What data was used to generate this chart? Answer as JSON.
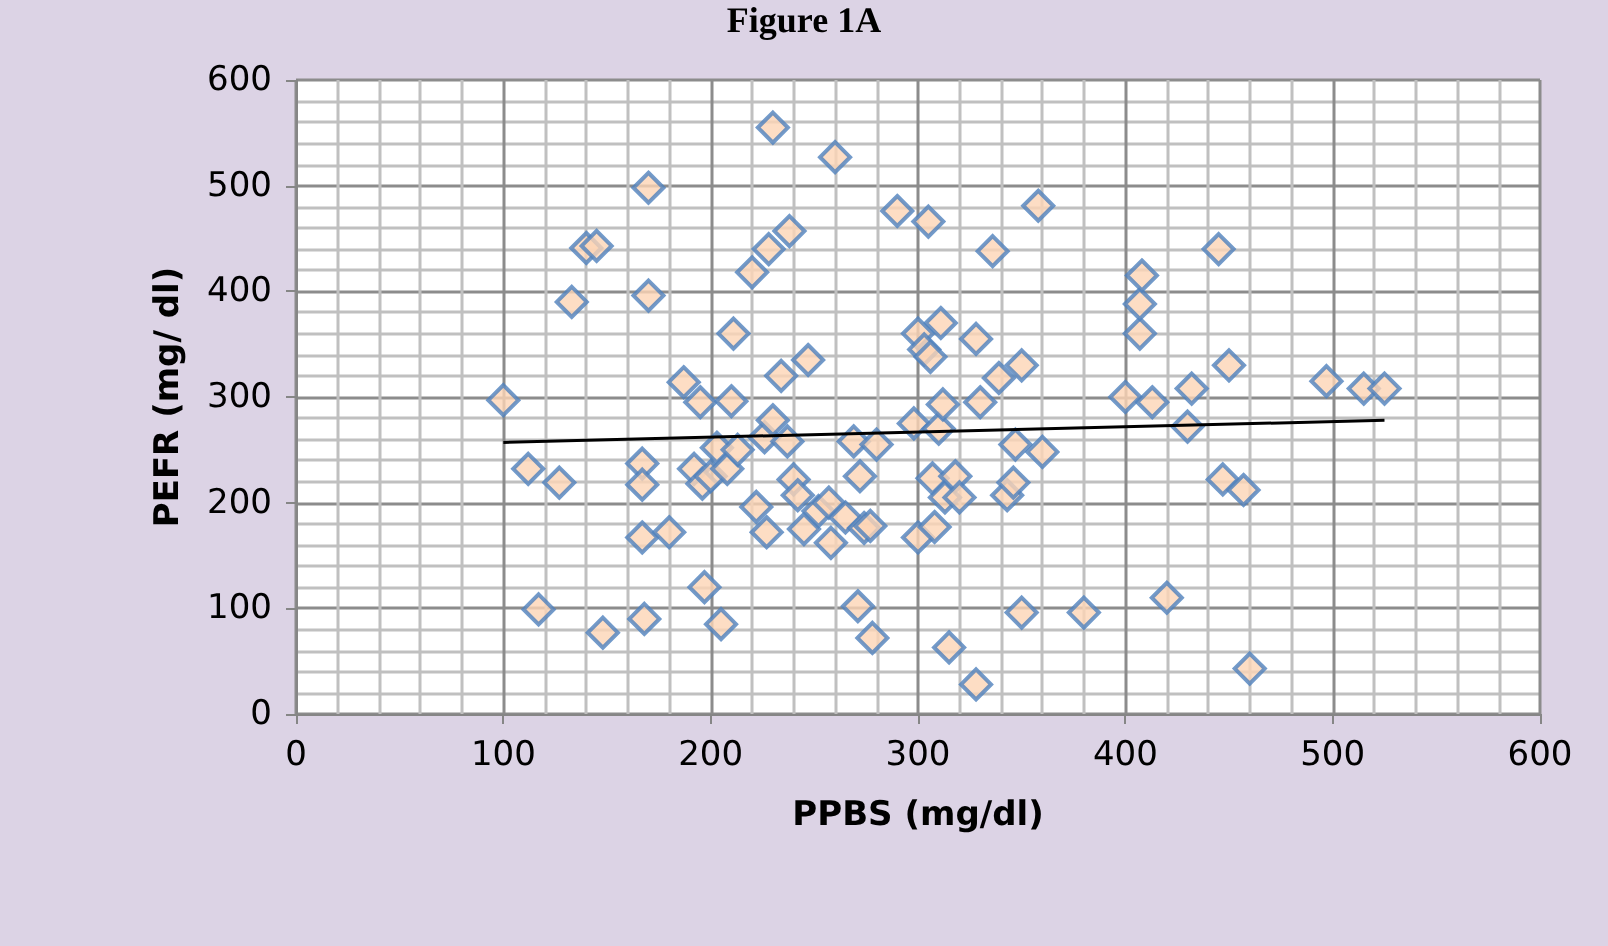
{
  "chart_data": {
    "type": "scatter",
    "title": "Figure 1A",
    "xlabel": "PPBS (mg/dl)",
    "ylabel": "PEFR (mg/ dl)",
    "xlim": [
      0,
      600
    ],
    "ylim": [
      0,
      600
    ],
    "xticks": [
      0,
      100,
      200,
      300,
      400,
      500,
      600
    ],
    "yticks": [
      0,
      100,
      200,
      300,
      400,
      500,
      600
    ],
    "grid": true,
    "marker": "diamond",
    "series": [
      {
        "color": "#4f81bd",
        "x": [
          100,
          112,
          117,
          127,
          133,
          140,
          145,
          148,
          167,
          167,
          167,
          168,
          170,
          170,
          180,
          187,
          192,
          195,
          196,
          197,
          200,
          203,
          205,
          208,
          210,
          211,
          213,
          220,
          222,
          226,
          227,
          228,
          230,
          230,
          234,
          237,
          238,
          240,
          242,
          245,
          247,
          252,
          257,
          258,
          260,
          265,
          269,
          271,
          272,
          274,
          277,
          278,
          280,
          290,
          298,
          300,
          300,
          303,
          305,
          306,
          307,
          308,
          310,
          311,
          312,
          313,
          315,
          318,
          320,
          328,
          328,
          330,
          336,
          339,
          343,
          346,
          347,
          350,
          350,
          358,
          360,
          380,
          400,
          407,
          407,
          408,
          413,
          420,
          430,
          432,
          445,
          447,
          450,
          457,
          460,
          497,
          515,
          525
        ],
        "values": [
          297,
          232,
          99,
          219,
          390,
          441,
          443,
          77,
          237,
          217,
          167,
          90,
          498,
          396,
          172,
          314,
          232,
          295,
          218,
          120,
          225,
          252,
          85,
          232,
          296,
          360,
          250,
          418,
          196,
          262,
          172,
          440,
          278,
          555,
          320,
          258,
          457,
          222,
          207,
          175,
          335,
          192,
          200,
          162,
          527,
          186,
          258,
          102,
          225,
          176,
          178,
          72,
          255,
          476,
          275,
          167,
          360,
          345,
          466,
          338,
          223,
          177,
          270,
          370,
          293,
          205,
          63,
          225,
          205,
          355,
          28,
          295,
          438,
          318,
          207,
          219,
          255,
          330,
          96,
          481,
          248,
          96,
          300,
          360,
          388,
          415,
          295,
          110,
          272,
          308,
          440,
          222,
          330,
          212,
          43,
          315,
          308,
          308
        ]
      },
      {
        "type": "line",
        "color": "#000000",
        "marker": "none",
        "x": [
          100,
          525
        ],
        "values": [
          257,
          278
        ]
      }
    ]
  }
}
